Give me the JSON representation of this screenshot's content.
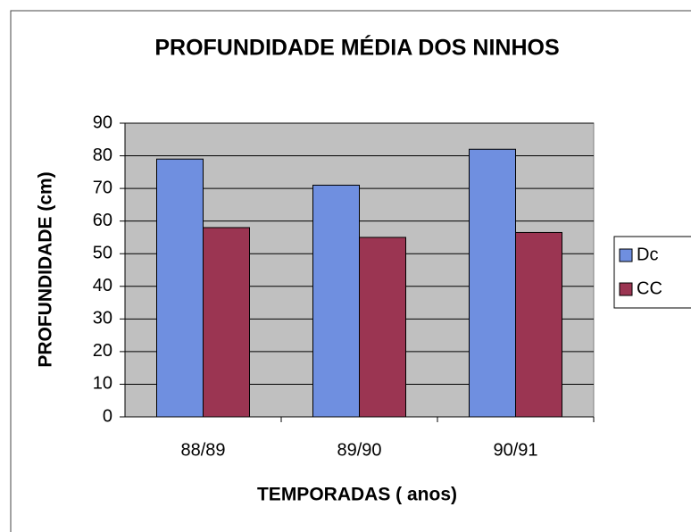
{
  "chart_data": {
    "type": "bar",
    "title": "PROFUNDIDADE MÉDIA DOS NINHOS",
    "x_label": "TEMPORADAS ( anos)",
    "y_label": "PROFUNDIDADE (cm)",
    "categories": [
      "88/89",
      "89/90",
      "90/91"
    ],
    "series": [
      {
        "name": "Dc",
        "color": "#6f8fe0",
        "values": [
          79,
          71,
          82
        ]
      },
      {
        "name": "CC",
        "color": "#9b3552",
        "values": [
          58,
          55,
          56.5
        ]
      }
    ],
    "ylim": [
      0,
      90
    ],
    "yticks": [
      0,
      10,
      20,
      30,
      40,
      50,
      60,
      70,
      80,
      90
    ],
    "grid": true,
    "legend": "right"
  }
}
